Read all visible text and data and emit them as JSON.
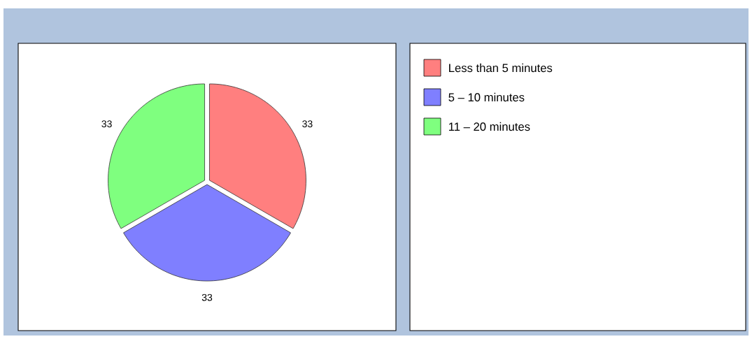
{
  "chart_data": {
    "type": "pie",
    "categories": [
      "Less than 5 minutes",
      "5 – 10 minutes",
      "11 – 20 minutes"
    ],
    "values": [
      33,
      33,
      33
    ],
    "colors": [
      "#ff7f7f",
      "#7f7fff",
      "#7fff7f"
    ],
    "data_labels": true,
    "legend": "right"
  }
}
